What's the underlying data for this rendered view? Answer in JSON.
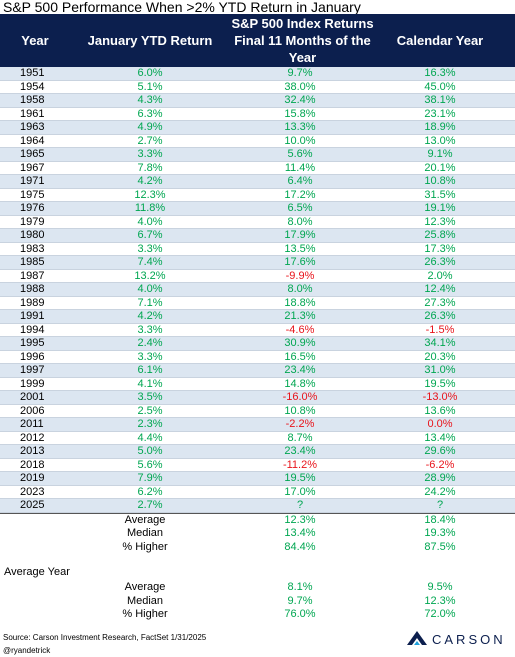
{
  "title": "S&P 500 Performance When >2% YTD Return in January",
  "header": [
    "Year",
    "January YTD Return",
    "S&P 500 Index Returns Final 11 Months of the Year",
    "Calendar Year"
  ],
  "rows": [
    [
      "1951",
      "6.0%",
      "9.7%",
      "16.3%"
    ],
    [
      "1954",
      "5.1%",
      "38.0%",
      "45.0%"
    ],
    [
      "1958",
      "4.3%",
      "32.4%",
      "38.1%"
    ],
    [
      "1961",
      "6.3%",
      "15.8%",
      "23.1%"
    ],
    [
      "1963",
      "4.9%",
      "13.3%",
      "18.9%"
    ],
    [
      "1964",
      "2.7%",
      "10.0%",
      "13.0%"
    ],
    [
      "1965",
      "3.3%",
      "5.6%",
      "9.1%"
    ],
    [
      "1967",
      "7.8%",
      "11.4%",
      "20.1%"
    ],
    [
      "1971",
      "4.2%",
      "6.4%",
      "10.8%"
    ],
    [
      "1975",
      "12.3%",
      "17.2%",
      "31.5%"
    ],
    [
      "1976",
      "11.8%",
      "6.5%",
      "19.1%"
    ],
    [
      "1979",
      "4.0%",
      "8.0%",
      "12.3%"
    ],
    [
      "1980",
      "6.7%",
      "17.9%",
      "25.8%"
    ],
    [
      "1983",
      "3.3%",
      "13.5%",
      "17.3%"
    ],
    [
      "1985",
      "7.4%",
      "17.6%",
      "26.3%"
    ],
    [
      "1987",
      "13.2%",
      "-9.9%",
      "2.0%"
    ],
    [
      "1988",
      "4.0%",
      "8.0%",
      "12.4%"
    ],
    [
      "1989",
      "7.1%",
      "18.8%",
      "27.3%"
    ],
    [
      "1991",
      "4.2%",
      "21.3%",
      "26.3%"
    ],
    [
      "1994",
      "3.3%",
      "-4.6%",
      "-1.5%"
    ],
    [
      "1995",
      "2.4%",
      "30.9%",
      "34.1%"
    ],
    [
      "1996",
      "3.3%",
      "16.5%",
      "20.3%"
    ],
    [
      "1997",
      "6.1%",
      "23.4%",
      "31.0%"
    ],
    [
      "1999",
      "4.1%",
      "14.8%",
      "19.5%"
    ],
    [
      "2001",
      "3.5%",
      "-16.0%",
      "-13.0%"
    ],
    [
      "2006",
      "2.5%",
      "10.8%",
      "13.6%"
    ],
    [
      "2011",
      "2.3%",
      "-2.2%",
      "0.0%"
    ],
    [
      "2012",
      "4.4%",
      "8.7%",
      "13.4%"
    ],
    [
      "2013",
      "5.0%",
      "23.4%",
      "29.6%"
    ],
    [
      "2018",
      "5.6%",
      "-11.2%",
      "-6.2%"
    ],
    [
      "2019",
      "7.9%",
      "19.5%",
      "28.9%"
    ],
    [
      "2023",
      "6.2%",
      "17.0%",
      "24.2%"
    ],
    [
      "2025",
      "2.7%",
      "?",
      "?"
    ]
  ],
  "red_cells": [
    [
      15,
      2
    ],
    [
      19,
      2
    ],
    [
      19,
      3
    ],
    [
      24,
      2
    ],
    [
      24,
      3
    ],
    [
      26,
      2
    ],
    [
      26,
      3
    ],
    [
      29,
      2
    ],
    [
      29,
      3
    ]
  ],
  "value_color": "#00a651",
  "negative_color": "#e8141b",
  "summary": [
    [
      "Average",
      "12.3%",
      "18.4%"
    ],
    [
      "Median",
      "13.4%",
      "19.3%"
    ],
    [
      "% Higher",
      "84.4%",
      "87.5%"
    ]
  ],
  "average_year": {
    "title": "Average Year",
    "rows": [
      [
        "Average",
        "8.1%",
        "9.5%"
      ],
      [
        "Median",
        "9.7%",
        "12.3%"
      ],
      [
        "% Higher",
        "76.0%",
        "72.0%"
      ]
    ]
  },
  "footer": {
    "source": "Source: Carson Investment Research, FactSet 1/31/2025",
    "handle": "@ryandetrick",
    "logo": "CARSON"
  }
}
